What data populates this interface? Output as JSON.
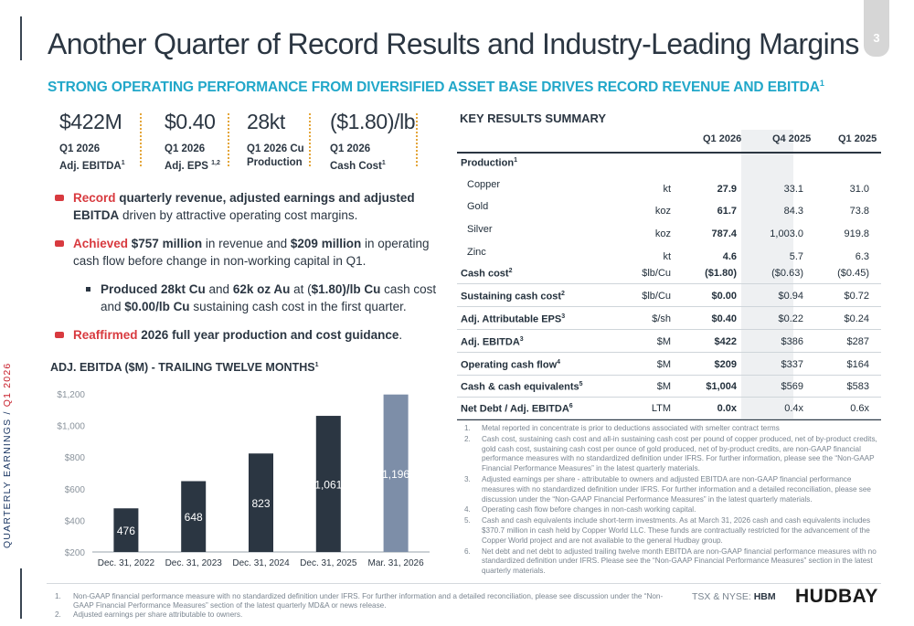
{
  "page": {
    "number": "3",
    "side_label_prefix": "QUARTERLY EARNINGS / ",
    "side_label_highlight": "Q1 2026",
    "title": "Another Quarter of Record Results and Industry-Leading Margins",
    "subtitle": "STRONG OPERATING PERFORMANCE FROM DIVERSIFIED ASSET BASE DRIVES RECORD REVENUE AND EBITDA",
    "subtitle_sup": "1"
  },
  "metrics": [
    {
      "value": "$422M",
      "line1": "Q1 2026",
      "line2": "Adj. EBITDA",
      "sup": "1"
    },
    {
      "value": "$0.40",
      "line1": "Q1 2026",
      "line2": "Adj. EPS ",
      "sup": "1,2"
    },
    {
      "value": "28kt",
      "line1": "Q1 2026 Cu",
      "line2": "Production",
      "sup": ""
    },
    {
      "value": "($1.80)/lb",
      "line1": "Q1 2026",
      "line2": "Cash Cost",
      "sup": "1"
    }
  ],
  "bullets": {
    "b1_red": "Record",
    "b1_bold": " quarterly revenue, adjusted earnings and adjusted EBITDA",
    "b1_rest": " driven by attractive operating cost margins.",
    "b2_red": "Achieved",
    "b2_b1": " $757 million",
    "b2_t1": " in revenue and ",
    "b2_b2": "$209 million",
    "b2_t2": " in operating cash flow before change in non-working capital in Q1.",
    "s_b1": "Produced 28kt Cu",
    "s_t1": " and ",
    "s_b2": "62k oz Au",
    "s_t2": " at (",
    "s_b3": "$1.80)/lb Cu",
    "s_t3": " cash cost and ",
    "s_b4": "$0.00/lb Cu",
    "s_t4": " sustaining cash cost in the first quarter.",
    "b3_red": "Reaffirmed",
    "b3_bold": " 2026 full year production and cost guidance",
    "b3_rest": "."
  },
  "chart": {
    "title": "ADJ. EBITDA ($M) - TRAILING TWELVE MONTHS",
    "title_sup": "1"
  },
  "chart_data": {
    "type": "bar",
    "title": "ADJ. EBITDA ($M) - TRAILING TWELVE MONTHS",
    "categories": [
      "Dec. 31, 2022",
      "Dec. 31, 2023",
      "Dec. 31, 2024",
      "Dec. 31, 2025",
      "Mar. 31, 2026"
    ],
    "values": [
      476,
      648,
      823,
      1061,
      1196
    ],
    "data_labels": [
      "476",
      "648",
      "823",
      "1,061",
      "1,196"
    ],
    "ylim": [
      200,
      1200
    ],
    "yticks": [
      200,
      400,
      600,
      800,
      1000,
      1200
    ],
    "ytick_labels": [
      "$200",
      "$400",
      "$600",
      "$800",
      "$1,000",
      "$1,200"
    ],
    "colors": [
      "#2b3642",
      "#2b3642",
      "#2b3642",
      "#2b3642",
      "#7d8ea8"
    ],
    "grid": false
  },
  "summary": {
    "title": "KEY RESULTS SUMMARY",
    "headers": [
      "Q1 2026",
      "Q4 2025",
      "Q1 2025"
    ],
    "rows": [
      {
        "label": "Production",
        "sup": "1",
        "unit": "",
        "q1_2026": "",
        "q4_2025": "",
        "q1_2025": "",
        "style": "bold"
      },
      {
        "label": "Copper",
        "sup": "",
        "unit": "kt",
        "q1_2026": "27.9",
        "q4_2025": "33.1",
        "q1_2025": "31.0",
        "style": "indent"
      },
      {
        "label": "Gold",
        "sup": "",
        "unit": "koz",
        "q1_2026": "61.7",
        "q4_2025": "84.3",
        "q1_2025": "73.8",
        "style": "indent"
      },
      {
        "label": "Silver",
        "sup": "",
        "unit": "koz",
        "q1_2026": "787.4",
        "q4_2025": "1,003.0",
        "q1_2025": "919.8",
        "style": "indent"
      },
      {
        "label": "Zinc",
        "sup": "",
        "unit": "kt",
        "q1_2026": "4.6",
        "q4_2025": "5.7",
        "q1_2025": "6.3",
        "style": "indent"
      },
      {
        "label": "Cash cost",
        "sup": "2",
        "unit": "$lb/Cu",
        "q1_2026": "($1.80)",
        "q4_2025": "($0.63)",
        "q1_2025": "($0.45)",
        "style": "bold"
      },
      {
        "label": "Sustaining cash cost",
        "sup": "2",
        "unit": "$lb/Cu",
        "q1_2026": "$0.00",
        "q4_2025": "$0.94",
        "q1_2025": "$0.72",
        "style": "bold"
      },
      {
        "label": "Adj. Attributable EPS",
        "sup": "3",
        "unit": "$/sh",
        "q1_2026": "$0.40",
        "q4_2025": "$0.22",
        "q1_2025": "$0.24",
        "style": "bold"
      },
      {
        "label": "Adj. EBITDA",
        "sup": "3",
        "unit": "$M",
        "q1_2026": "$422",
        "q4_2025": "$386",
        "q1_2025": "$287",
        "style": "bold"
      },
      {
        "label": "Operating cash flow",
        "sup": "4",
        "unit": "$M",
        "q1_2026": "$209",
        "q4_2025": "$337",
        "q1_2025": "$164",
        "style": "bold"
      },
      {
        "label": "Cash & cash equivalents",
        "sup": "5",
        "unit": "$M",
        "q1_2026": "$1,004",
        "q4_2025": "$569",
        "q1_2025": "$583",
        "style": "bold"
      },
      {
        "label": "Net Debt / Adj. EBITDA",
        "sup": "6",
        "unit": "LTM",
        "q1_2026": "0.0x",
        "q4_2025": "0.4x",
        "q1_2025": "0.6x",
        "style": "bold"
      }
    ]
  },
  "notes": [
    {
      "n": "1.",
      "text": "Metal reported in concentrate is prior to deductions associated with smelter contract terms"
    },
    {
      "n": "2.",
      "text": "Cash cost, sustaining cash cost and all-in sustaining cash cost per pound of copper produced, net of by-product credits, gold cash cost, sustaining cash cost per ounce of gold produced, net of by-product credits, are non-GAAP financial performance measures with no standardized definition under IFRS. For further information, please see the “Non-GAAP Financial Performance Measures” in the latest quarterly materials."
    },
    {
      "n": "3.",
      "text": "Adjusted earnings per share - attributable to owners and adjusted EBITDA are non-GAAP financial performance measures with no standardized definition under IFRS. For further information and a detailed reconciliation, please see discussion under the “Non-GAAP Financial Performance Measures” in the latest quarterly materials."
    },
    {
      "n": "4.",
      "text": "Operating cash flow before changes in non-cash working capital."
    },
    {
      "n": "5.",
      "text": "Cash and cash equivalents include short-term investments. As at March 31, 2026 cash and cash equivalents includes $370.7 million in cash held by Copper World LLC. These funds are contractually restricted for the advancement of the Copper World project and are not available to the general Hudbay group."
    },
    {
      "n": "6.",
      "text": "Net debt and net debt to adjusted trailing twelve month EBITDA are non-GAAP financial performance measures with no standardized definition under IFRS. Please see the “Non-GAAP Financial Performance Measures” section in the latest quarterly materials."
    }
  ],
  "footnotes": [
    {
      "n": "1.",
      "text": "Non-GAAP financial performance measure with no standardized definition under IFRS. For further information and a detailed reconciliation, please see discussion under the “Non-GAAP Financial Performance Measures” section of the latest quarterly MD&A or news release."
    },
    {
      "n": "2.",
      "text": "Adjusted earnings per share attributable to owners."
    }
  ],
  "footer": {
    "tsx_label": "TSX & NYSE: ",
    "ticker": "HBM",
    "logo": "HUDBAY"
  }
}
